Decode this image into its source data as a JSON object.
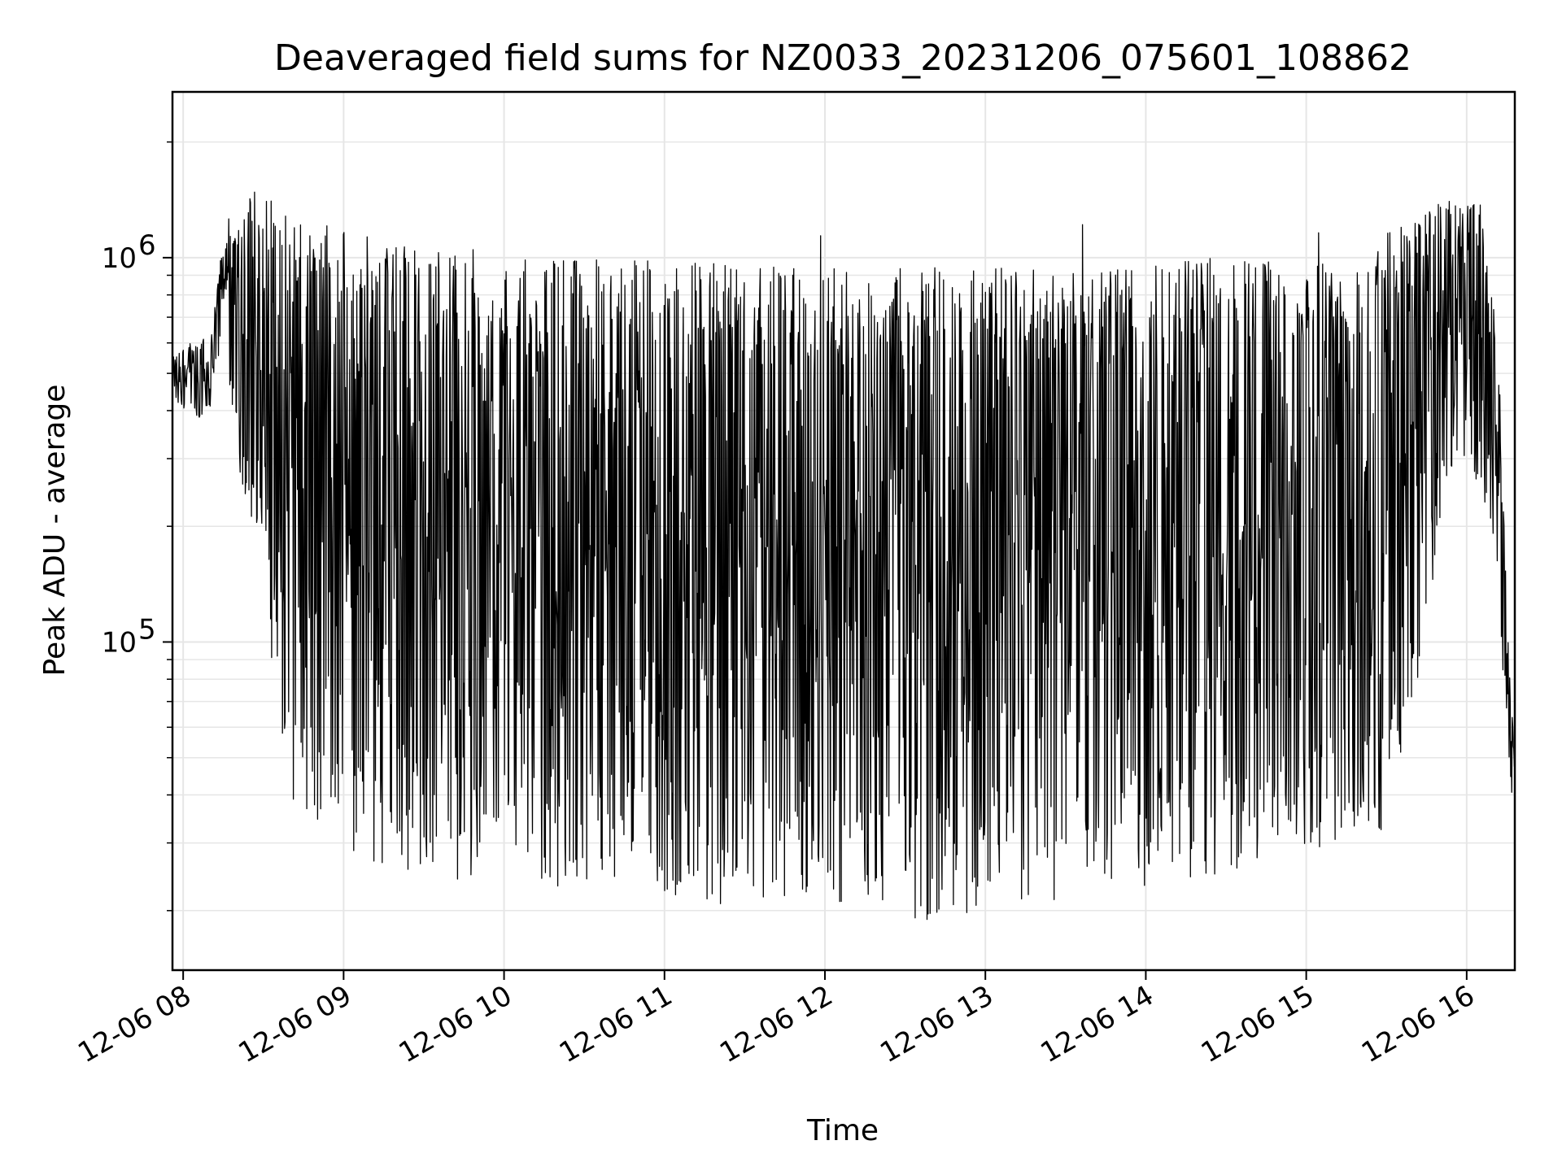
{
  "chart_data": {
    "type": "line",
    "title": "Deaveraged field sums for NZ0033_20231206_075601_108862",
    "xlabel": "Time",
    "ylabel": "Peak ADU - average",
    "yscale": "log",
    "ylim": [
      14000,
      2700000
    ],
    "xlim": [
      "2023-12-06 07:56",
      "2023-12-06 16:18"
    ],
    "grid": true,
    "line_color": "#000000",
    "x_ticks": [
      "12-06 08",
      "12-06 09",
      "12-06 10",
      "12-06 11",
      "12-06 12",
      "12-06 13",
      "12-06 14",
      "12-06 15",
      "12-06 16"
    ],
    "y_ticks": [
      {
        "base": "10",
        "exp": "5",
        "value": 100000
      },
      {
        "base": "10",
        "exp": "6",
        "value": 1000000
      }
    ],
    "series": [
      {
        "x": [
          "2023-12-06 07:56",
          "2023-12-06 08:00",
          "2023-12-06 08:05",
          "2023-12-06 08:10",
          "2023-12-06 08:14",
          "2023-12-06 08:17",
          "2023-12-06 08:20",
          "2023-12-06 08:25",
          "2023-12-06 08:30",
          "2023-12-06 08:35",
          "2023-12-06 08:40",
          "2023-12-06 08:45",
          "2023-12-06 08:50",
          "2023-12-06 08:55",
          "2023-12-06 09:00",
          "2023-12-06 09:10",
          "2023-12-06 09:20",
          "2023-12-06 09:30",
          "2023-12-06 09:40",
          "2023-12-06 09:50",
          "2023-12-06 10:00",
          "2023-12-06 10:15",
          "2023-12-06 10:30",
          "2023-12-06 10:45",
          "2023-12-06 11:00",
          "2023-12-06 11:15",
          "2023-12-06 11:30",
          "2023-12-06 11:45",
          "2023-12-06 12:00",
          "2023-12-06 12:15",
          "2023-12-06 12:30",
          "2023-12-06 12:45",
          "2023-12-06 13:00",
          "2023-12-06 13:15",
          "2023-12-06 13:30",
          "2023-12-06 13:45",
          "2023-12-06 14:00",
          "2023-12-06 14:15",
          "2023-12-06 14:30",
          "2023-12-06 14:45",
          "2023-12-06 15:00",
          "2023-12-06 15:15",
          "2023-12-06 15:30",
          "2023-12-06 15:40",
          "2023-12-06 15:50",
          "2023-12-06 16:00",
          "2023-12-06 16:05",
          "2023-12-06 16:08",
          "2023-12-06 16:12",
          "2023-12-06 16:15",
          "2023-12-06 16:18"
        ],
        "hi": [
          550000,
          600000,
          600000,
          650000,
          1000000,
          1300000,
          1300000,
          1500000,
          1500000,
          1400000,
          1300000,
          1300000,
          1250000,
          1200000,
          1200000,
          1150000,
          1100000,
          1100000,
          1100000,
          1050000,
          1000000,
          1000000,
          1000000,
          1000000,
          1000000,
          1000000,
          950000,
          950000,
          950000,
          950000,
          950000,
          950000,
          950000,
          950000,
          950000,
          950000,
          950000,
          1000000,
          1000000,
          1000000,
          1000000,
          1000000,
          1200000,
          1300000,
          1400000,
          1450000,
          1400000,
          1000000,
          600000,
          120000,
          50000
        ],
        "lo": [
          420000,
          400000,
          380000,
          400000,
          600000,
          500000,
          300000,
          200000,
          150000,
          60000,
          40000,
          32000,
          30000,
          28000,
          28000,
          26000,
          26000,
          25000,
          24000,
          24000,
          24000,
          23000,
          22000,
          21000,
          21000,
          20000,
          20000,
          20000,
          21000,
          21000,
          19000,
          18000,
          20000,
          20000,
          21000,
          22000,
          23000,
          24000,
          25000,
          26000,
          28000,
          30000,
          32000,
          60000,
          200000,
          300000,
          250000,
          200000,
          120000,
          60000,
          30000
        ]
      }
    ]
  }
}
